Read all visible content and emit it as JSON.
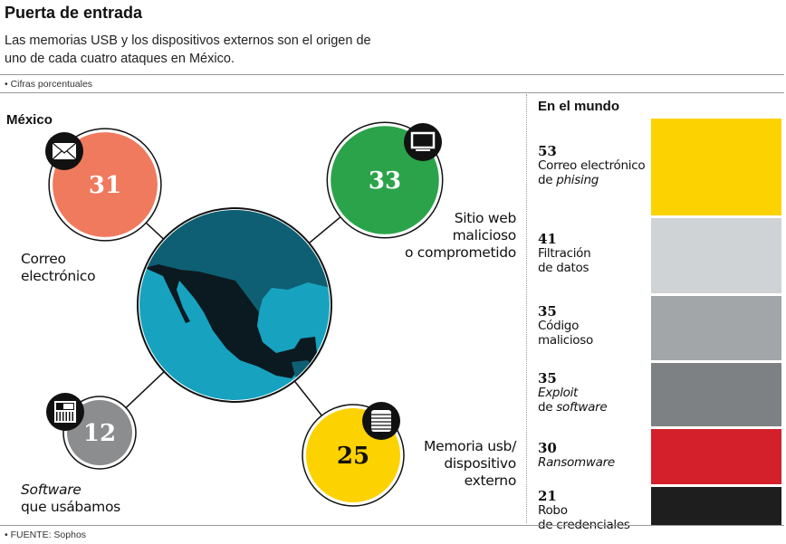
{
  "header": {
    "title": "Puerta de entrada",
    "subtitle": "Las memorias USB y los dispositivos externos son el origen de uno de cada cuatro ataques en México.",
    "units_note": "• Cifras porcentuales"
  },
  "footer": {
    "source": "• FUENTE: Sophos"
  },
  "colors": {
    "email": "#f07a5e",
    "web": "#2ba34a",
    "software": "#8c8d8f",
    "usb": "#fcd200",
    "ocean": "#17a3bf",
    "land_us": "#0e5f73",
    "mexico": "#0b1a20"
  },
  "chart_data": [
    {
      "type": "bubble",
      "title": "México",
      "items": [
        {
          "label_line1": "Correo",
          "label_line2": "electrónico",
          "value": 31,
          "icon": "envelope-icon",
          "color": "#f07a5e"
        },
        {
          "label_line1": "Sitio web",
          "label_line2": "malicioso",
          "label_line3": "o comprometido",
          "value": 33,
          "icon": "monitor-icon",
          "color": "#2ba34a"
        },
        {
          "label_line1": "Software",
          "label_line2": "que usábamos",
          "value": 12,
          "icon": "software-icon",
          "color": "#8c8d8f"
        },
        {
          "label_line1": "Memoria usb/",
          "label_line2": "dispositivo",
          "label_line3": "externo",
          "value": 25,
          "icon": "usb-storage-icon",
          "color": "#fcd200"
        }
      ]
    },
    {
      "type": "bar",
      "title": "En el mundo",
      "orientation": "stacked-vertical",
      "items": [
        {
          "value": 53,
          "label_line1": "Correo electrónico",
          "label_line2_prefix": "de ",
          "label_line2_italic": "phising",
          "color": "#fcd200"
        },
        {
          "value": 41,
          "label_line1": "Filtración",
          "label_line2": "de datos",
          "color": "#d0d3d5"
        },
        {
          "value": 35,
          "label_line1": "Código",
          "label_line2": "malicioso",
          "color": "#a3a6a8"
        },
        {
          "value": 35,
          "label_line1_italic": "Exploit",
          "label_line2_prefix": "de ",
          "label_line2_italic": "software",
          "color": "#7e8183"
        },
        {
          "value": 30,
          "label_line1_italic": "Ransomware",
          "color": "#d3202a"
        },
        {
          "value": 21,
          "label_line1": "Robo",
          "label_line2": "de credenciales",
          "color": "#1e1e1e"
        }
      ]
    }
  ]
}
